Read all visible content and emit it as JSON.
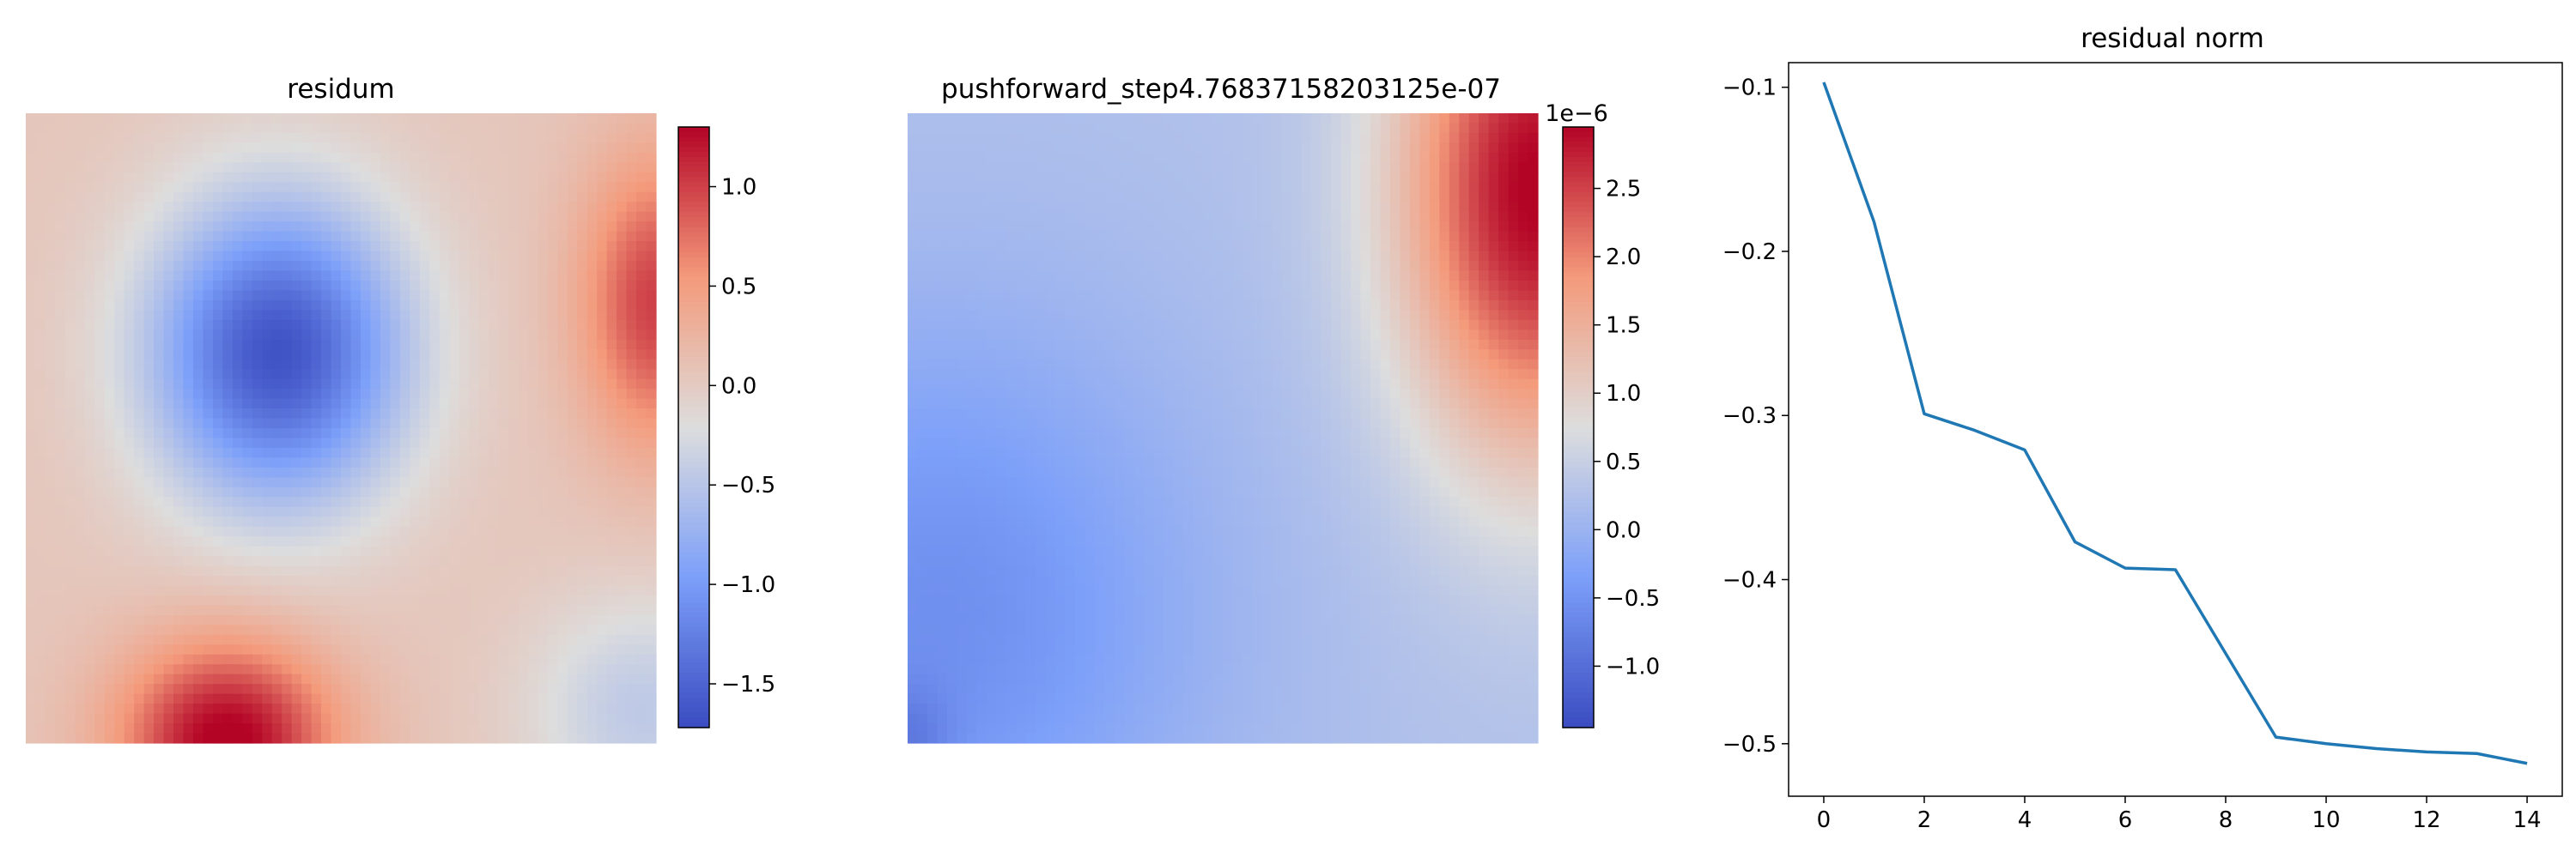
{
  "figure": {
    "background": "#ffffff"
  },
  "chart_data": [
    {
      "type": "heatmap",
      "title": "residum",
      "colormap": "coolwarm",
      "field": {
        "grid": [
          64,
          64
        ],
        "x_range": [
          0,
          1
        ],
        "y_range": [
          0,
          1
        ],
        "components": [
          {
            "cx": 0.4,
            "cy": 0.62,
            "sx": 0.2,
            "sy": 0.24,
            "amp": -1.7
          },
          {
            "cx": 0.32,
            "cy": 0.0,
            "sx": 0.17,
            "sy": 0.16,
            "amp": 1.32
          },
          {
            "cx": 1.0,
            "cy": 0.7,
            "sx": 0.12,
            "sy": 0.23,
            "amp": 0.95
          },
          {
            "cx": 0.98,
            "cy": 0.05,
            "sx": 0.18,
            "sy": 0.18,
            "amp": -0.5
          }
        ],
        "offset": 0.05,
        "vmin": -1.72,
        "vmax": 1.3
      },
      "colorbar": {
        "ticks": [
          {
            "value": 1.0,
            "label": "1.0"
          },
          {
            "value": 0.5,
            "label": "0.5"
          },
          {
            "value": 0.0,
            "label": "0.0"
          },
          {
            "value": -0.5,
            "label": "−0.5"
          },
          {
            "value": -1.0,
            "label": "−1.0"
          },
          {
            "value": -1.5,
            "label": "−1.5"
          }
        ]
      }
    },
    {
      "type": "heatmap",
      "title": "pushforward_step4.76837158203125e-07",
      "colormap": "coolwarm",
      "field": {
        "grid": [
          64,
          64
        ],
        "x_range": [
          0,
          1
        ],
        "y_range": [
          0,
          1
        ],
        "components": [
          {
            "cx": 1.0,
            "cy": 0.88,
            "sx": 0.22,
            "sy": 0.42,
            "amp": 2.75
          },
          {
            "cx": 0.05,
            "cy": 0.2,
            "sx": 0.42,
            "sy": 0.48,
            "amp": -0.8
          },
          {
            "cx": 0.0,
            "cy": 0.0,
            "sx": 0.07,
            "sy": 0.09,
            "amp": -0.45
          }
        ],
        "offset": 0.25,
        "vmin": -1.45,
        "vmax": 2.95
      },
      "colorbar": {
        "scale_label": "1e−6",
        "ticks": [
          {
            "value": 2.5,
            "label": "2.5"
          },
          {
            "value": 2.0,
            "label": "2.0"
          },
          {
            "value": 1.5,
            "label": "1.5"
          },
          {
            "value": 1.0,
            "label": "1.0"
          },
          {
            "value": 0.5,
            "label": "0.5"
          },
          {
            "value": 0.0,
            "label": "0.0"
          },
          {
            "value": -0.5,
            "label": "−0.5"
          },
          {
            "value": -1.0,
            "label": "−1.0"
          }
        ]
      }
    },
    {
      "type": "line",
      "title": "residual norm",
      "xlim": [
        -0.7,
        14.7
      ],
      "ylim": [
        -0.532,
        -0.085
      ],
      "xticks": [
        0,
        2,
        4,
        6,
        8,
        10,
        12,
        14
      ],
      "yticks": [
        {
          "value": -0.1,
          "label": "−0.1"
        },
        {
          "value": -0.2,
          "label": "−0.2"
        },
        {
          "value": -0.3,
          "label": "−0.3"
        },
        {
          "value": -0.4,
          "label": "−0.4"
        },
        {
          "value": -0.5,
          "label": "−0.5"
        }
      ],
      "line_color": "#1f77b4",
      "series": [
        {
          "x": [
            0,
            1,
            2,
            3,
            4,
            5,
            6,
            7,
            8,
            9,
            10,
            11,
            12,
            13,
            14
          ],
          "values": [
            -0.097,
            -0.182,
            -0.299,
            -0.309,
            -0.321,
            -0.377,
            -0.393,
            -0.394,
            -0.445,
            -0.496,
            -0.5,
            -0.503,
            -0.505,
            -0.506,
            -0.512
          ]
        }
      ]
    }
  ]
}
